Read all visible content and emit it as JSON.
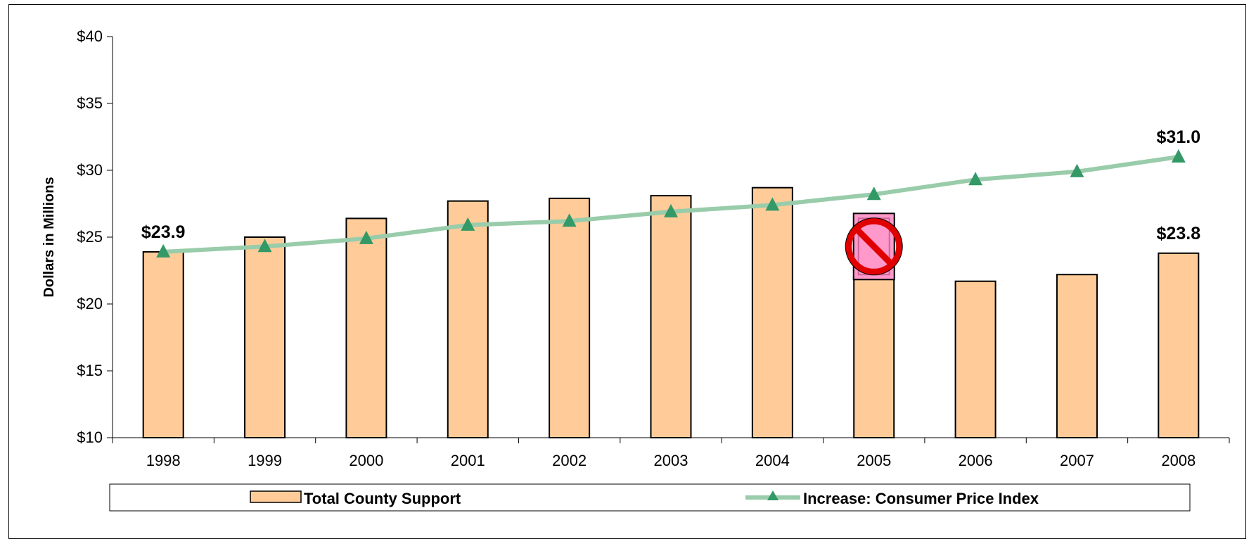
{
  "chart_data": {
    "type": "bar",
    "categories": [
      "1998",
      "1999",
      "2000",
      "2001",
      "2002",
      "2003",
      "2004",
      "2005",
      "2006",
      "2007",
      "2008"
    ],
    "series": [
      {
        "name": "Total County Support",
        "type": "bar",
        "values": [
          23.9,
          25.0,
          26.4,
          27.7,
          27.9,
          28.1,
          28.7,
          26.6,
          21.7,
          22.2,
          23.8
        ],
        "color": "#FFCC99"
      },
      {
        "name": "Increase: Consumer Price Index",
        "type": "line",
        "values": [
          23.9,
          24.3,
          24.9,
          25.9,
          26.2,
          26.9,
          27.4,
          28.2,
          29.3,
          29.9,
          31.0
        ],
        "line_color": "#99CCAA",
        "marker": "triangle",
        "marker_color": "#339966"
      }
    ],
    "ylabel": "Dollars in Millions",
    "ylim": [
      10,
      40
    ],
    "yticks": [
      "$10",
      "$15",
      "$20",
      "$25",
      "$30",
      "$35",
      "$40"
    ],
    "data_labels": [
      {
        "series": 1,
        "index": 0,
        "text": "$23.9"
      },
      {
        "series": 1,
        "index": 10,
        "text": "$31.0"
      },
      {
        "series": 0,
        "index": 10,
        "text": "$23.8"
      }
    ],
    "annotation": {
      "index": 7,
      "icon": "no-symbol-icon"
    },
    "legend_position": "bottom"
  }
}
